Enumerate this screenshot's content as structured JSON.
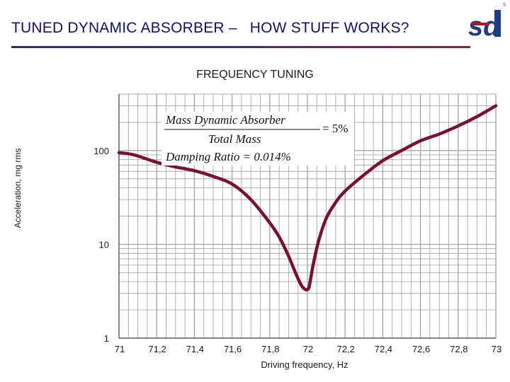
{
  "page_number": "5",
  "header": {
    "title": "TUNED DYNAMIC ABSORBER –   HOW STUFF WORKS?",
    "logo_text": "sd"
  },
  "colors": {
    "title": "#10106b",
    "curve": "#7a1030",
    "grid": "#a9a9a9",
    "logo_blue": "#1e3b8a",
    "logo_red": "#b01828"
  },
  "chart_data": {
    "type": "line",
    "title": "FREQUENCY TUNING",
    "xlabel": "Driving frequency, Hz",
    "ylabel": "Acceleration, mg rms",
    "y_scale": "log",
    "xlim": [
      71,
      73
    ],
    "ylim": [
      1,
      400
    ],
    "x_ticks": [
      71,
      71.2,
      71.4,
      71.6,
      71.8,
      72,
      72.2,
      72.4,
      72.6,
      72.8,
      73
    ],
    "x_tick_labels": [
      "71",
      "71,2",
      "71,4",
      "71,6",
      "71,8",
      "72",
      "72,2",
      "72,4",
      "72,6",
      "72,8",
      "73"
    ],
    "y_ticks": [
      1,
      10,
      100
    ],
    "y_tick_labels": [
      "1",
      "10",
      "100"
    ],
    "grid": true,
    "series": [
      {
        "x": [
          71.0,
          71.08,
          71.2,
          71.3,
          71.4,
          71.5,
          71.6,
          71.7,
          71.8,
          71.85,
          71.9,
          71.94,
          71.97,
          71.99,
          72.0,
          72.01,
          72.03,
          72.06,
          72.1,
          72.15,
          72.2,
          72.3,
          72.4,
          72.5,
          72.6,
          72.7,
          72.8,
          72.9,
          73.0
        ],
        "y": [
          95,
          90,
          75,
          67,
          61,
          53,
          44,
          30,
          17,
          12,
          7.5,
          4.8,
          3.6,
          3.3,
          3.3,
          3.6,
          6.0,
          11,
          19,
          28,
          37,
          55,
          78,
          100,
          127,
          150,
          183,
          230,
          300
        ]
      }
    ],
    "annotation": {
      "line1_numerator": "Mass  Dynamic   Absorber",
      "line1_denominator": "Total  Mass",
      "line1_value": "= 5%",
      "line2": "Damping  Ratio = 0.014%"
    }
  }
}
